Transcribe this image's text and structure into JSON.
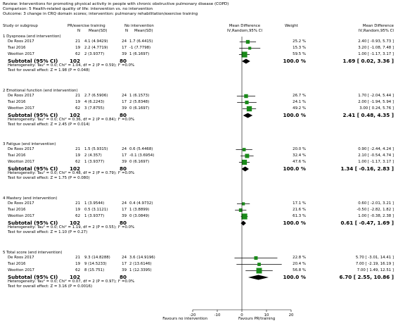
{
  "header": {
    "review": "Review:  Interventions for promoting physical activity in people with chronic obstructive pulmonary disease (COPD)",
    "comparison": "Comparison:  5 Health-related quality of life: intervention vs. no intervention",
    "outcome": "Outcome:  3 change in CRQ domain scores; intervention: pulmonary rehabilitation/exercise training"
  },
  "columns": {
    "study": "Study or subgroup",
    "exp_group": "PR/exercise training",
    "exp_n": "N",
    "exp_mean": "Mean(SD)",
    "ctl_group": "No intervention",
    "ctl_n": "N",
    "ctl_mean": "Mean(SD)",
    "md_line1": "Mean Difference",
    "md_line2": "IV,Random,95% CI",
    "weight": "Weight",
    "md_right1": "Mean Difference",
    "md_right2": "IV,Random,95% CI"
  },
  "chart_data": {
    "type": "forest",
    "x_axis": {
      "min": -20,
      "max": 20,
      "ticks": [
        -20,
        -10,
        0,
        10,
        20
      ]
    },
    "favours_left": "Favours no intervention",
    "favours_right": "Favours PR/training",
    "subgroups": [
      {
        "label": "1 Dyspnoea (end intervention)",
        "studies": [
          {
            "name": "De Roos 2017",
            "n1": "21",
            "m1": "4.1 (4.9429)",
            "n2": "24",
            "m2": "1.7 (6.4415)",
            "weight": "25.2 %",
            "ci": "2.40 [ -0.93, 5.73 ]",
            "md": 2.4,
            "lo": -0.93,
            "hi": 5.73,
            "w": 25.2
          },
          {
            "name": "Tsai 2016",
            "n1": "19",
            "m1": "2.2 (4.7719)",
            "n2": "17",
            "m2": "-1 (7.7798)",
            "weight": "15.3 %",
            "ci": "3.20 [ -1.08, 7.48 ]",
            "md": 3.2,
            "lo": -1.08,
            "hi": 7.48,
            "w": 15.3
          },
          {
            "name": "Wootton 2017",
            "n1": "62",
            "m1": "2 (3.9377)",
            "n2": "39",
            "m2": "1 (6.1697)",
            "weight": "59.5 %",
            "ci": "1.00 [ -1.17, 3.17 ]",
            "md": 1.0,
            "lo": -1.17,
            "hi": 3.17,
            "w": 59.5
          }
        ],
        "subtotal": {
          "label": "Subtotal (95% CI)",
          "n1": "102",
          "n2": "80",
          "weight": "100.0 %",
          "ci": "1.69 [ 0.02, 3.36 ]",
          "md": 1.69,
          "lo": 0.02,
          "hi": 3.36
        },
        "het": "Heterogeneity: Tau² = 0.0; Chi² = 1.04, df = 2 (P = 0.59); I² =0.0%",
        "test": "Test for overall effect: Z = 1.98 (P = 0.048)"
      },
      {
        "label": "2 Emotional function (end intervention)",
        "studies": [
          {
            "name": "De Roos 2017",
            "n1": "21",
            "m1": "2.7 (6.5906)",
            "n2": "24",
            "m2": "1 (6.1573)",
            "weight": "26.7 %",
            "ci": "1.70 [ -2.04, 5.44 ]",
            "md": 1.7,
            "lo": -2.04,
            "hi": 5.44,
            "w": 26.7
          },
          {
            "name": "Tsai 2016",
            "n1": "19",
            "m1": "4 (6.2243)",
            "n2": "17",
            "m2": "2 (5.8348)",
            "weight": "24.1 %",
            "ci": "2.00 [ -1.94, 5.94 ]",
            "md": 2.0,
            "lo": -1.94,
            "hi": 5.94,
            "w": 24.1
          },
          {
            "name": "Wootton 2017",
            "n1": "62",
            "m1": "3 (7.8755)",
            "n2": "39",
            "m2": "0 (6.1697)",
            "weight": "49.2 %",
            "ci": "3.00 [ 0.24, 5.76 ]",
            "md": 3.0,
            "lo": 0.24,
            "hi": 5.76,
            "w": 49.2
          }
        ],
        "subtotal": {
          "label": "Subtotal (95% CI)",
          "n1": "102",
          "n2": "80",
          "weight": "100.0 %",
          "ci": "2.41 [ 0.48, 4.35 ]",
          "md": 2.41,
          "lo": 0.48,
          "hi": 4.35
        },
        "het": "Heterogeneity: Tau² = 0.0; Chi² = 0.36, df = 2 (P = 0.84); I² =0.0%",
        "test": "Test for overall effect: Z = 2.45 (P = 0.014)"
      },
      {
        "label": "3 Fatigue (end intervention)",
        "studies": [
          {
            "name": "De Roos 2017",
            "n1": "21",
            "m1": "1.5 (5.9315)",
            "n2": "24",
            "m2": "0.6 (5.4468)",
            "weight": "20.0 %",
            "ci": "0.90 [ -2.44, 4.24 ]",
            "md": 0.9,
            "lo": -2.44,
            "hi": 4.24,
            "w": 20.0
          },
          {
            "name": "Tsai 2016",
            "n1": "19",
            "m1": "2 (4.357)",
            "n2": "17",
            "m2": "-0.1 (3.6954)",
            "weight": "32.4 %",
            "ci": "2.10 [ -0.54, 4.74 ]",
            "md": 2.1,
            "lo": -0.54,
            "hi": 4.74,
            "w": 32.4
          },
          {
            "name": "Wootton 2017",
            "n1": "62",
            "m1": "1 (3.9377)",
            "n2": "39",
            "m2": "0 (6.1697)",
            "weight": "47.6 %",
            "ci": "1.00 [ -1.17, 3.17 ]",
            "md": 1.0,
            "lo": -1.17,
            "hi": 3.17,
            "w": 47.6
          }
        ],
        "subtotal": {
          "label": "Subtotal (95% CI)",
          "n1": "102",
          "n2": "80",
          "weight": "100.0 %",
          "ci": "1.34 [ -0.16, 2.83 ]",
          "md": 1.34,
          "lo": -0.16,
          "hi": 2.83
        },
        "het": "Heterogeneity: Tau² = 0.0; Chi² = 0.48, df = 2 (P = 0.79); I² =0.0%",
        "test": "Test for overall effect: Z = 1.75 (P = 0.080)"
      },
      {
        "label": "4 Mastery (end intervention)",
        "studies": [
          {
            "name": "De Roos 2017",
            "n1": "21",
            "m1": "1 (3.9544)",
            "n2": "24",
            "m2": "0.4 (4.9732)",
            "weight": "17.1 %",
            "ci": "0.60 [ -2.01, 3.21 ]",
            "md": 0.6,
            "lo": -2.01,
            "hi": 3.21,
            "w": 17.1
          },
          {
            "name": "Tsai 2016",
            "n1": "19",
            "m1": "0.5 (3.1121)",
            "n2": "17",
            "m2": "1 (3.8899)",
            "weight": "21.6 %",
            "ci": "-0.50 [ -2.82, 1.82 ]",
            "md": -0.5,
            "lo": -2.82,
            "hi": 1.82,
            "w": 21.6
          },
          {
            "name": "Wootton 2017",
            "n1": "62",
            "m1": "1 (3.9377)",
            "n2": "39",
            "m2": "0 (3.0849)",
            "weight": "61.3 %",
            "ci": "1.00 [ -0.38, 2.38 ]",
            "md": 1.0,
            "lo": -0.38,
            "hi": 2.38,
            "w": 61.3
          }
        ],
        "subtotal": {
          "label": "Subtotal (95% CI)",
          "n1": "102",
          "n2": "80",
          "weight": "100.0 %",
          "ci": "0.61 [ -0.47, 1.69 ]",
          "md": 0.61,
          "lo": -0.47,
          "hi": 1.69
        },
        "het": "Heterogeneity: Tau² = 0.0; Chi² = 1.19, df = 2 (P = 0.55); I² =0.0%",
        "test": "Test for overall effect: Z = 1.10 (P = 0.27)"
      },
      {
        "label": "5 Total score (end intervention)",
        "studies": [
          {
            "name": "De Roos 2017",
            "n1": "21",
            "m1": "9.3 (14.8288)",
            "n2": "24",
            "m2": "3.6 (14.9196)",
            "weight": "22.8 %",
            "ci": "5.70 [ -3.01, 14.41 ]",
            "md": 5.7,
            "lo": -3.01,
            "hi": 14.41,
            "w": 22.8
          },
          {
            "name": "Tsai 2016",
            "n1": "19",
            "m1": "9 (14.5233)",
            "n2": "17",
            "m2": "2 (13.6146)",
            "weight": "20.4 %",
            "ci": "7.00 [ -2.19, 16.19 ]",
            "md": 7.0,
            "lo": -2.19,
            "hi": 16.19,
            "w": 20.4
          },
          {
            "name": "Wootton 2017",
            "n1": "62",
            "m1": "8 (15.751)",
            "n2": "39",
            "m2": "1 (12.3395)",
            "weight": "56.8 %",
            "ci": "7.00 [ 1.49, 12.51 ]",
            "md": 7.0,
            "lo": 1.49,
            "hi": 12.51,
            "w": 56.8
          }
        ],
        "subtotal": {
          "label": "Subtotal (95% CI)",
          "n1": "102",
          "n2": "80",
          "weight": "100.0 %",
          "ci": "6.70 [ 2.55, 10.86 ]",
          "md": 6.7,
          "lo": 2.55,
          "hi": 10.86
        },
        "het": "Heterogeneity: Tau² = 0.0; Chi² = 0.07, df = 2 (P = 0.97); I² =0.0%",
        "test": "Test for overall effect: Z = 3.16 (P = 0.0016)"
      }
    ]
  },
  "colors": {
    "marker": "#1a8a1a",
    "line": "#000000"
  }
}
